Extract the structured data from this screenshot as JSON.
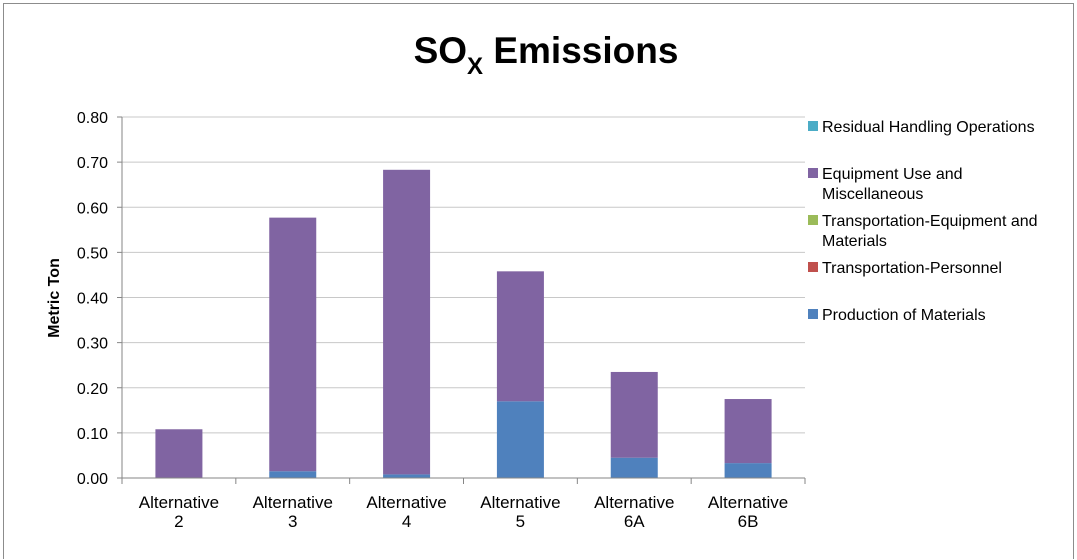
{
  "chart_data": {
    "type": "bar",
    "stacked": true,
    "title": "SO",
    "title_subscript": "X",
    "title_suffix": " Emissions",
    "ylabel": "Metric Ton",
    "ylim": [
      0,
      0.8
    ],
    "yticks": [
      "0.00",
      "0.10",
      "0.20",
      "0.30",
      "0.40",
      "0.50",
      "0.60",
      "0.70",
      "0.80"
    ],
    "grid": true,
    "legend_position": "right",
    "categories": [
      [
        "Alternative",
        "2"
      ],
      [
        "Alternative",
        "3"
      ],
      [
        "Alternative",
        "4"
      ],
      [
        "Alternative",
        "5"
      ],
      [
        "Alternative",
        "6A"
      ],
      [
        "Alternative",
        "6B"
      ]
    ],
    "series": [
      {
        "name": "Production of Materials",
        "color": "#4f81bd",
        "values": [
          0.0,
          0.015,
          0.008,
          0.17,
          0.045,
          0.033
        ]
      },
      {
        "name": "Transportation-Personnel",
        "color": "#c0504d",
        "values": [
          0,
          0,
          0,
          0,
          0,
          0
        ]
      },
      {
        "name": "Transportation-Equipment and Materials",
        "color": "#9bbb59",
        "values": [
          0,
          0,
          0,
          0,
          0,
          0
        ]
      },
      {
        "name": "Equipment Use and Miscellaneous",
        "color": "#8064a2",
        "values": [
          0.108,
          0.562,
          0.675,
          0.288,
          0.19,
          0.142
        ]
      },
      {
        "name": "Residual Handling Operations",
        "color": "#4bacc6",
        "values": [
          0,
          0,
          0,
          0,
          0,
          0
        ]
      }
    ],
    "legend": [
      {
        "lines": [
          "Residual Handling Operations"
        ],
        "color": "#4bacc6"
      },
      {
        "lines": [
          "Equipment Use and",
          "Miscellaneous"
        ],
        "color": "#8064a2"
      },
      {
        "lines": [
          "Transportation-Equipment and",
          "Materials"
        ],
        "color": "#9bbb59"
      },
      {
        "lines": [
          "Transportation-Personnel"
        ],
        "color": "#c0504d"
      },
      {
        "lines": [
          "Production of Materials"
        ],
        "color": "#4f81bd"
      }
    ]
  }
}
